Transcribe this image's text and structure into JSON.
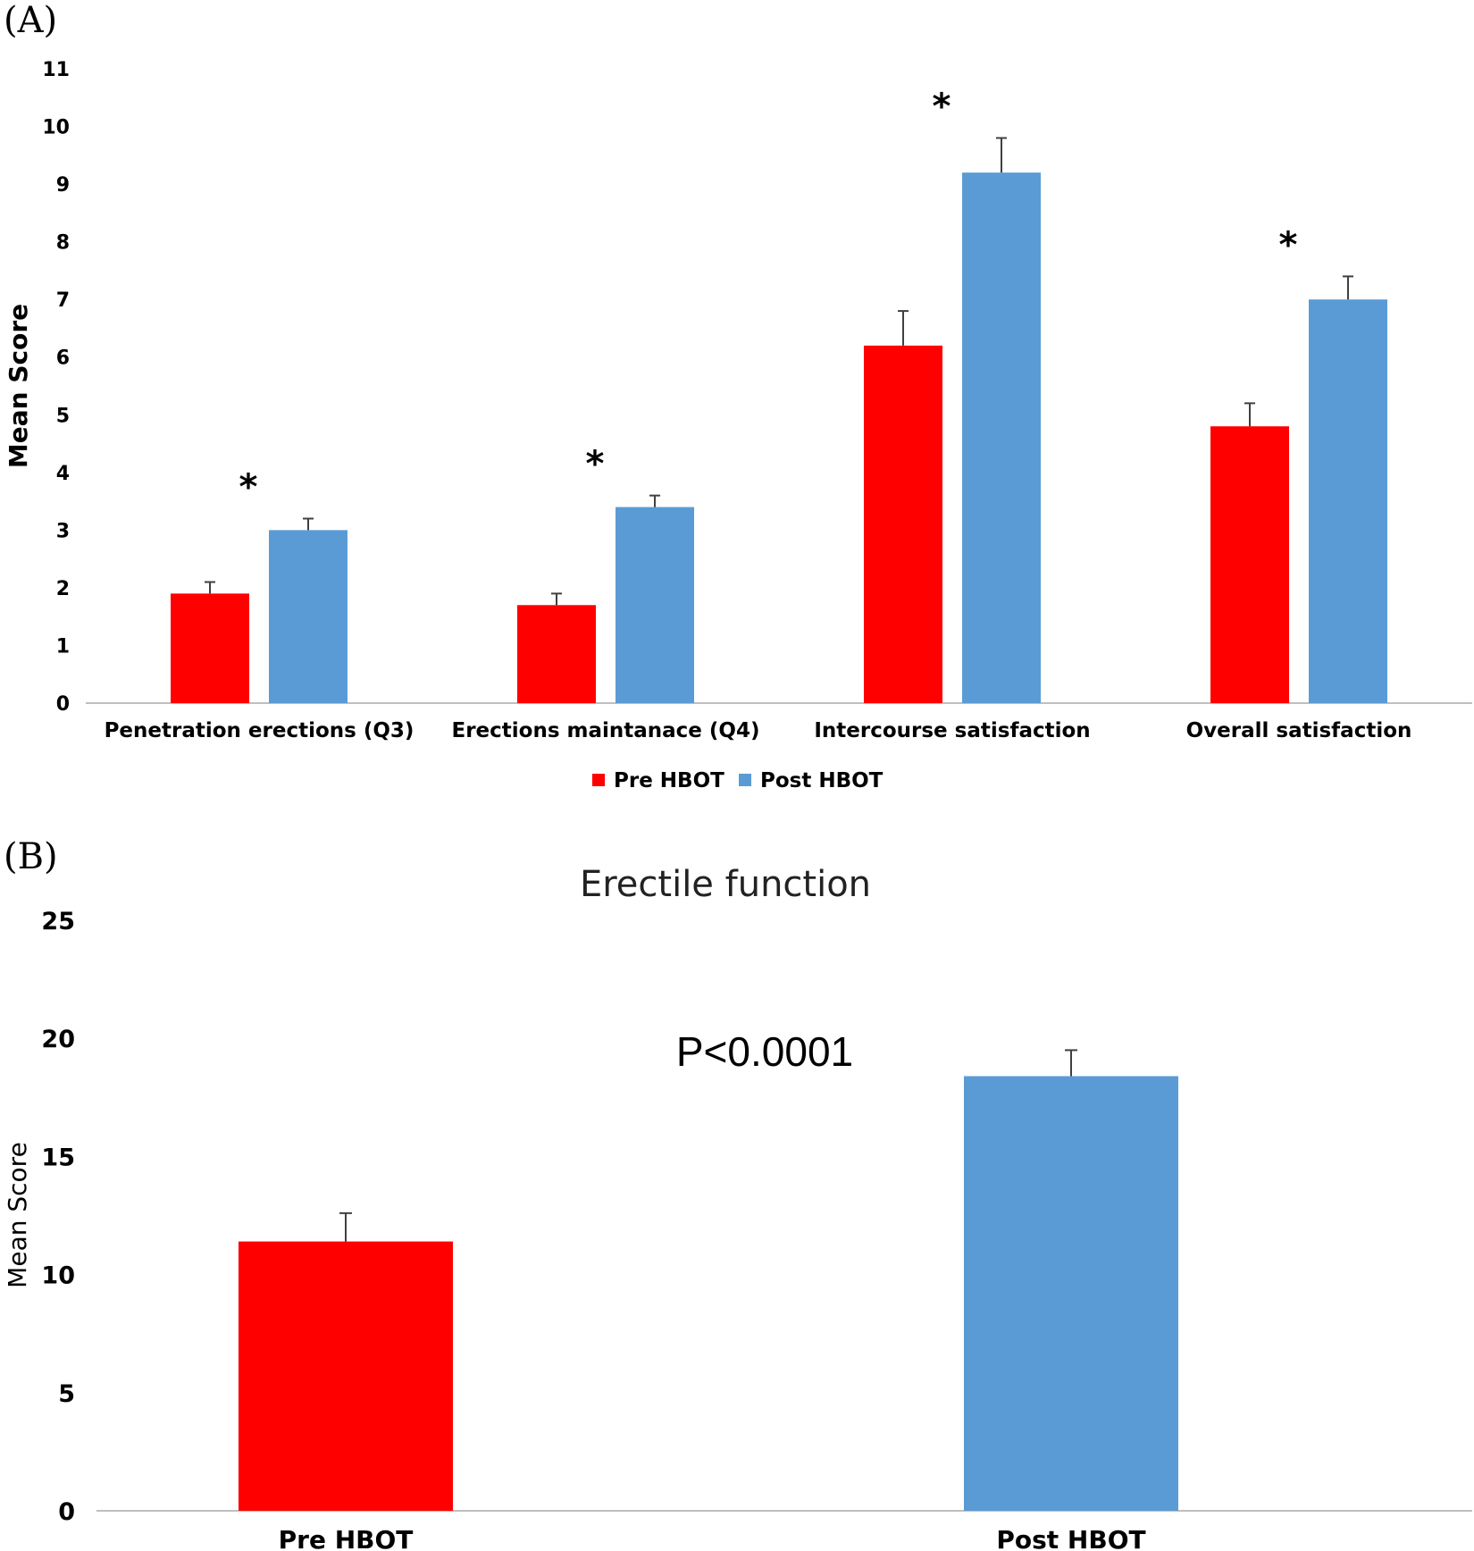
{
  "panel_a_label": "(A)",
  "panel_b_label": "(B)",
  "colors": {
    "pre": "#ff0000",
    "post": "#5b9bd5"
  },
  "chart_data": [
    {
      "type": "bar",
      "title": "",
      "xlabel": "",
      "ylabel": "Mean Score",
      "ylim": [
        0,
        11
      ],
      "yticks": [
        "0",
        "1",
        "2",
        "3",
        "4",
        "5",
        "6",
        "7",
        "8",
        "9",
        "10",
        "11"
      ],
      "categories": [
        "Penetration erections (Q3)",
        "Erections maintanace (Q4)",
        "Intercourse satisfaction",
        "Overall satisfaction"
      ],
      "series": [
        {
          "name": "Pre HBOT",
          "values": [
            1.9,
            1.7,
            6.2,
            4.8
          ],
          "errors": [
            0.2,
            0.2,
            0.6,
            0.4
          ]
        },
        {
          "name": "Post HBOT",
          "values": [
            3.0,
            3.4,
            9.2,
            7.0
          ],
          "errors": [
            0.2,
            0.2,
            0.6,
            0.4
          ]
        }
      ],
      "annotations": [
        "*",
        "*",
        "*",
        "*"
      ],
      "legend": "bottom",
      "grid": false
    },
    {
      "type": "bar",
      "title": "Erectile function",
      "xlabel": "",
      "ylabel": "Mean Score",
      "ylim": [
        0,
        25
      ],
      "yticks": [
        "0",
        "5",
        "10",
        "15",
        "20",
        "25"
      ],
      "categories": [
        "Pre HBOT",
        "Post HBOT"
      ],
      "values": [
        11.4,
        18.4
      ],
      "errors": [
        1.2,
        1.1
      ],
      "annotation": "P<0.0001",
      "grid": false
    }
  ]
}
